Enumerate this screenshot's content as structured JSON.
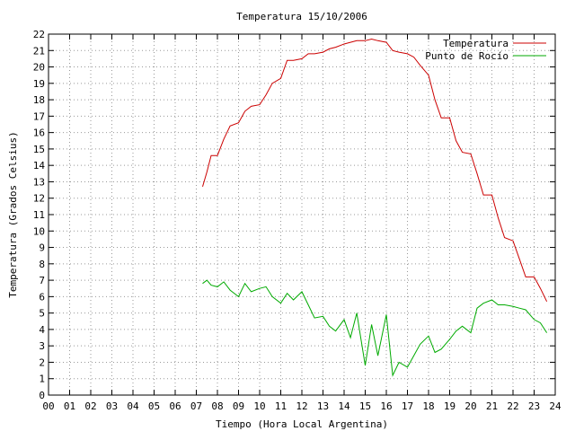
{
  "chart_data": {
    "type": "line",
    "title": "Temperatura 15/10/2006",
    "xlabel": "Tiempo (Hora Local Argentina)",
    "ylabel": "Temperatura (Grados Celsius)",
    "xlim": [
      0,
      24
    ],
    "ylim": [
      0,
      22
    ],
    "xticks": [
      "00",
      "01",
      "02",
      "03",
      "04",
      "05",
      "06",
      "07",
      "08",
      "09",
      "10",
      "11",
      "12",
      "13",
      "14",
      "15",
      "16",
      "17",
      "18",
      "19",
      "20",
      "21",
      "22",
      "23",
      "24"
    ],
    "yticks": [
      0,
      1,
      2,
      3,
      4,
      5,
      6,
      7,
      8,
      9,
      10,
      11,
      12,
      13,
      14,
      15,
      16,
      17,
      18,
      19,
      20,
      21,
      22
    ],
    "grid": true,
    "legend_position": "top-right",
    "series": [
      {
        "name": "Temperatura",
        "color": "#cc0000",
        "x": [
          7.3,
          7.5,
          7.7,
          8.0,
          8.3,
          8.6,
          9.0,
          9.3,
          9.6,
          10.0,
          10.3,
          10.6,
          11.0,
          11.3,
          11.6,
          12.0,
          12.3,
          12.6,
          13.0,
          13.3,
          13.6,
          14.0,
          14.3,
          14.6,
          15.0,
          15.3,
          15.6,
          16.0,
          16.3,
          16.6,
          17.0,
          17.3,
          17.6,
          18.0,
          18.3,
          18.6,
          19.0,
          19.3,
          19.6,
          20.0,
          20.3,
          20.6,
          21.0,
          21.3,
          21.6,
          22.0,
          22.3,
          22.6,
          23.0,
          23.3,
          23.6
        ],
        "y": [
          12.7,
          13.6,
          14.6,
          14.6,
          15.6,
          16.4,
          16.6,
          17.3,
          17.6,
          17.7,
          18.3,
          19.0,
          19.3,
          20.4,
          20.4,
          20.5,
          20.8,
          20.8,
          20.9,
          21.1,
          21.2,
          21.4,
          21.5,
          21.6,
          21.6,
          21.7,
          21.6,
          21.5,
          21.0,
          20.9,
          20.8,
          20.6,
          20.1,
          19.5,
          18.0,
          16.9,
          16.9,
          15.5,
          14.8,
          14.7,
          13.5,
          12.2,
          12.2,
          10.8,
          9.6,
          9.4,
          8.3,
          7.2,
          7.2,
          6.5,
          5.7
        ]
      },
      {
        "name": "Punto de Rocío",
        "color": "#00aa00",
        "x": [
          7.3,
          7.5,
          7.7,
          8.0,
          8.3,
          8.6,
          9.0,
          9.3,
          9.6,
          10.0,
          10.3,
          10.6,
          11.0,
          11.3,
          11.6,
          12.0,
          12.3,
          12.6,
          13.0,
          13.3,
          13.6,
          14.0,
          14.3,
          14.6,
          15.0,
          15.3,
          15.6,
          16.0,
          16.3,
          16.6,
          17.0,
          17.3,
          17.6,
          18.0,
          18.3,
          18.6,
          19.0,
          19.3,
          19.6,
          20.0,
          20.3,
          20.6,
          21.0,
          21.3,
          21.6,
          22.0,
          22.3,
          22.6,
          23.0,
          23.3,
          23.6
        ],
        "y": [
          6.8,
          7.0,
          6.7,
          6.6,
          6.9,
          6.4,
          6.0,
          6.8,
          6.3,
          6.5,
          6.6,
          6.0,
          5.6,
          6.2,
          5.8,
          6.3,
          5.5,
          4.7,
          4.8,
          4.2,
          3.9,
          4.6,
          3.5,
          5.0,
          1.8,
          4.3,
          2.4,
          4.9,
          1.2,
          2.0,
          1.7,
          2.4,
          3.1,
          3.6,
          2.6,
          2.8,
          3.4,
          3.9,
          4.2,
          3.8,
          5.3,
          5.6,
          5.8,
          5.5,
          5.5,
          5.4,
          5.3,
          5.2,
          4.6,
          4.4,
          3.8
        ]
      }
    ]
  }
}
